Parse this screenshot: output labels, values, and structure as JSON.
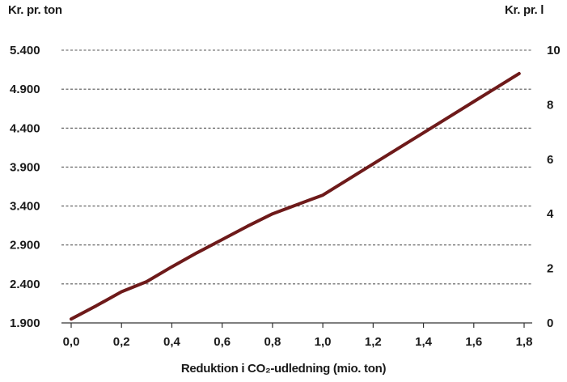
{
  "chart_data": {
    "type": "line",
    "xlabel": "Reduktion i CO₂-udledning (mio. ton)",
    "ylabel": "Kr. pr. ton",
    "y2label": "Kr. pr. l",
    "x_ticks": [
      "0,0",
      "0,2",
      "0,4",
      "0,6",
      "0,8",
      "1,0",
      "1,2",
      "1,4",
      "1,6",
      "1,8"
    ],
    "y_ticks": [
      "1.900",
      "2.400",
      "2.900",
      "3.400",
      "3.900",
      "4.400",
      "4.900",
      "5.400"
    ],
    "y2_ticks": [
      "0",
      "2",
      "4",
      "6",
      "8",
      "10"
    ],
    "xlim": [
      0,
      1.8
    ],
    "ylim": [
      1900,
      5400
    ],
    "y2lim": [
      0,
      10
    ],
    "grid": "horizontal dashed",
    "line_color": "#6e1a1a",
    "series": [
      {
        "x": [
          0.0,
          0.1,
          0.2,
          0.3,
          0.4,
          0.5,
          0.6,
          0.7,
          0.8,
          0.9,
          1.0,
          1.1,
          1.2,
          1.3,
          1.4,
          1.5,
          1.6,
          1.7,
          1.78
        ],
        "y": [
          1950,
          2120,
          2300,
          2430,
          2620,
          2800,
          2970,
          3140,
          3300,
          3420,
          3540,
          3740,
          3940,
          4140,
          4340,
          4540,
          4740,
          4940,
          5100
        ]
      }
    ]
  }
}
